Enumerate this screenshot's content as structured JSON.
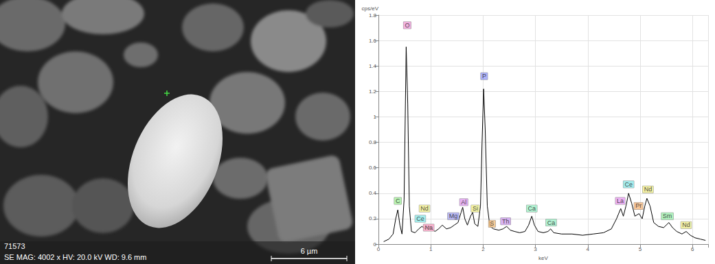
{
  "micrograph": {
    "id": "71573",
    "info": "SE MAG: 4002 x HV: 20.0 kV WD: 9.6 mm",
    "scale_bar": "6 µm"
  },
  "chart_data": {
    "type": "line",
    "x_label": "keV",
    "y_label": "cps/eV",
    "x": [
      0.1,
      0.2,
      0.28,
      0.33,
      0.37,
      0.41,
      0.45,
      0.49,
      0.53,
      0.56,
      0.59,
      0.63,
      0.7,
      0.77,
      0.83,
      0.9,
      0.96,
      1.02,
      1.08,
      1.15,
      1.22,
      1.3,
      1.38,
      1.45,
      1.52,
      1.58,
      1.61,
      1.65,
      1.7,
      1.76,
      1.8,
      1.84,
      1.9,
      1.95,
      1.98,
      2.01,
      2.04,
      2.08,
      2.13,
      2.2,
      2.3,
      2.38,
      2.45,
      2.52,
      2.6,
      2.7,
      2.8,
      2.87,
      2.93,
      2.98,
      3.05,
      3.15,
      3.24,
      3.29,
      3.35,
      3.5,
      3.7,
      3.9,
      4.1,
      4.3,
      4.45,
      4.55,
      4.63,
      4.68,
      4.73,
      4.78,
      4.84,
      4.9,
      4.98,
      5.04,
      5.09,
      5.13,
      5.19,
      5.26,
      5.35,
      5.45,
      5.55,
      5.62,
      5.7,
      5.8,
      5.88,
      5.96,
      6.05,
      6.15,
      6.25
    ],
    "values": [
      0.02,
      0.04,
      0.08,
      0.2,
      0.27,
      0.15,
      0.08,
      0.35,
      1.55,
      1.1,
      0.3,
      0.1,
      0.09,
      0.12,
      0.14,
      0.12,
      0.14,
      0.12,
      0.1,
      0.12,
      0.15,
      0.12,
      0.13,
      0.15,
      0.17,
      0.25,
      0.29,
      0.2,
      0.15,
      0.22,
      0.25,
      0.16,
      0.14,
      0.3,
      0.8,
      1.22,
      0.9,
      0.3,
      0.14,
      0.12,
      0.11,
      0.12,
      0.14,
      0.11,
      0.1,
      0.09,
      0.1,
      0.15,
      0.22,
      0.15,
      0.1,
      0.09,
      0.1,
      0.12,
      0.09,
      0.08,
      0.08,
      0.07,
      0.08,
      0.09,
      0.12,
      0.2,
      0.28,
      0.22,
      0.3,
      0.4,
      0.32,
      0.22,
      0.24,
      0.2,
      0.3,
      0.36,
      0.3,
      0.17,
      0.14,
      0.13,
      0.17,
      0.13,
      0.1,
      0.08,
      0.1,
      0.07,
      0.05,
      0.04,
      0.03
    ],
    "color": "#000000",
    "xlim": [
      0,
      6.3
    ],
    "xticks": [
      0,
      1,
      2,
      3,
      4,
      5,
      6
    ],
    "ylim": [
      0,
      1.8
    ],
    "yticks": [
      0,
      0.2,
      0.4,
      0.6,
      0.8,
      1.0,
      1.2,
      1.4,
      1.6,
      1.8
    ],
    "grid": true,
    "annotations": [
      {
        "text": "C",
        "x": 0.37,
        "y": 0.34,
        "color": "#a8f0a0"
      },
      {
        "text": "O",
        "x": 0.55,
        "y": 1.72,
        "color": "#f0a0d8"
      },
      {
        "text": "Ce",
        "x": 0.8,
        "y": 0.2,
        "color": "#90e8e8"
      },
      {
        "text": "Nd",
        "x": 0.88,
        "y": 0.28,
        "color": "#f0ee90"
      },
      {
        "text": "Na",
        "x": 0.96,
        "y": 0.13,
        "color": "#f5a0c0"
      },
      {
        "text": "Mg",
        "x": 1.43,
        "y": 0.22,
        "color": "#a8a8f0"
      },
      {
        "text": "Al",
        "x": 1.63,
        "y": 0.33,
        "color": "#e0a0f0"
      },
      {
        "text": "Si",
        "x": 1.85,
        "y": 0.28,
        "color": "#f0f090"
      },
      {
        "text": "P",
        "x": 2.02,
        "y": 1.32,
        "color": "#9aa0f5"
      },
      {
        "text": "S",
        "x": 2.17,
        "y": 0.16,
        "color": "#f5c080"
      },
      {
        "text": "Th",
        "x": 2.43,
        "y": 0.18,
        "color": "#d0a0f0"
      },
      {
        "text": "Ca",
        "x": 2.93,
        "y": 0.28,
        "color": "#a0f0c8"
      },
      {
        "text": "Ca",
        "x": 3.3,
        "y": 0.17,
        "color": "#a0f0c8"
      },
      {
        "text": "La",
        "x": 4.62,
        "y": 0.34,
        "color": "#e8a0f0"
      },
      {
        "text": "Ce",
        "x": 4.78,
        "y": 0.47,
        "color": "#90e8e8"
      },
      {
        "text": "Pr",
        "x": 4.97,
        "y": 0.3,
        "color": "#f5b880"
      },
      {
        "text": "Nd",
        "x": 5.15,
        "y": 0.43,
        "color": "#f0ee90"
      },
      {
        "text": "Sm",
        "x": 5.52,
        "y": 0.22,
        "color": "#a0f0b0"
      },
      {
        "text": "Nd",
        "x": 5.88,
        "y": 0.15,
        "color": "#f0ee90"
      }
    ]
  }
}
